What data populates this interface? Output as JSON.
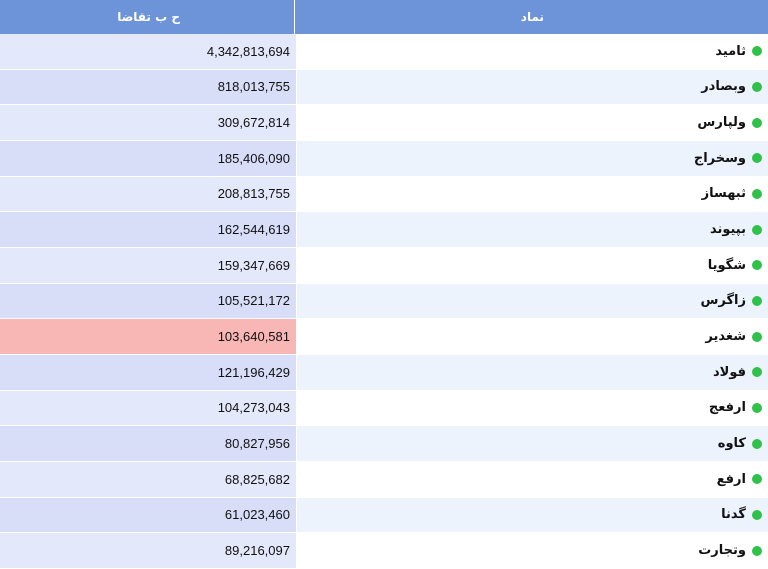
{
  "header": {
    "symbol_label": "نماد",
    "demand_label": "ح ب تقاضا"
  },
  "status_color": "#2fc14a",
  "highlight_color": "#f8b7b5",
  "rows": [
    {
      "symbol": "ثامید",
      "demand": "4,342,813,694"
    },
    {
      "symbol": "وبصادر",
      "demand": "818,013,755"
    },
    {
      "symbol": "ولپارس",
      "demand": "309,672,814"
    },
    {
      "symbol": "وسخراج",
      "demand": "185,406,090"
    },
    {
      "symbol": "ثبهساز",
      "demand": "208,813,755"
    },
    {
      "symbol": "بپیوند",
      "demand": "162,544,619"
    },
    {
      "symbol": "شگویا",
      "demand": "159,347,669"
    },
    {
      "symbol": "زاگرس",
      "demand": "105,521,172"
    },
    {
      "symbol": "شغدیر",
      "demand": "103,640,581"
    },
    {
      "symbol": "فولاد",
      "demand": "121,196,429"
    },
    {
      "symbol": "ارفعج",
      "demand": "104,273,043"
    },
    {
      "symbol": "کاوه",
      "demand": "80,827,956"
    },
    {
      "symbol": "ارفع",
      "demand": "68,825,682"
    },
    {
      "symbol": "گدنا",
      "demand": "61,023,460"
    },
    {
      "symbol": "وتجارت",
      "demand": "89,216,097"
    }
  ]
}
